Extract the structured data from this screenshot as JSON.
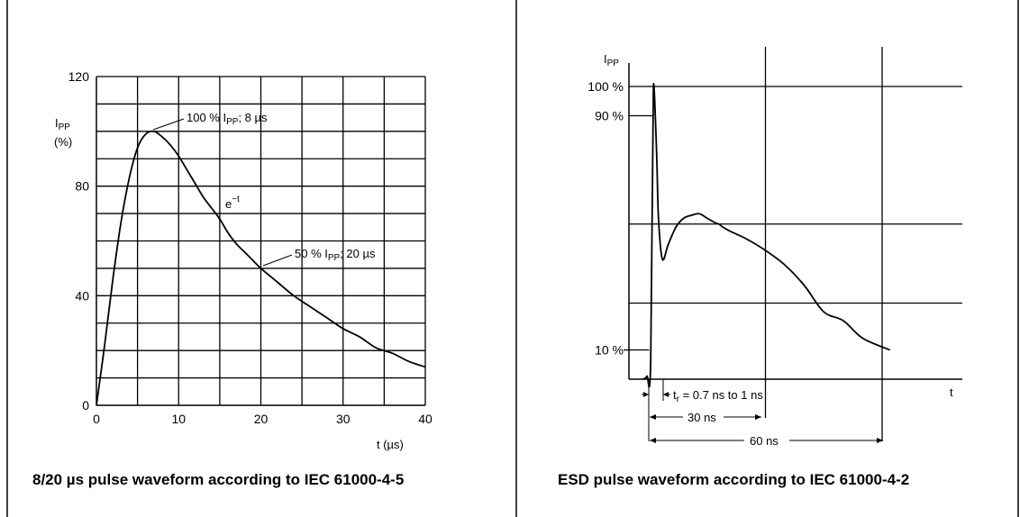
{
  "chart_data": [
    {
      "type": "line",
      "caption": "8/20 µs pulse waveform according to IEC 61000-4-5",
      "ylabel_main": "I",
      "ylabel_sub": "PP",
      "ylabel_unit": "(%)",
      "xlabel": "t (µs)",
      "xlim": [
        0,
        40
      ],
      "ylim": [
        0,
        120
      ],
      "x_ticks": [
        0,
        10,
        20,
        30,
        40
      ],
      "y_ticks": [
        0,
        40,
        80,
        120
      ],
      "grid": true,
      "annotations": [
        {
          "id": "peak",
          "main": "100 % I",
          "sub": "PP",
          "rest": "; 8 µs",
          "x": 7,
          "y": 100
        },
        {
          "id": "half",
          "main": "50 % I",
          "sub": "PP",
          "rest": "; 20 µs",
          "x": 20,
          "y": 50
        },
        {
          "id": "decay",
          "main": "e",
          "sup": "−t",
          "x": 16,
          "y": 70
        }
      ],
      "series": [
        {
          "x": [
            0,
            1,
            2,
            3,
            4,
            5,
            6,
            7,
            8,
            9,
            10,
            11,
            12,
            13,
            14,
            15,
            16,
            17,
            18,
            19,
            20,
            22,
            24,
            26,
            28,
            30,
            32,
            34,
            36,
            38,
            40
          ],
          "y": [
            0,
            22,
            46,
            67,
            83,
            94,
            99,
            100,
            98,
            95,
            91,
            86,
            81,
            76,
            72,
            68,
            63,
            59,
            56,
            53,
            50,
            45,
            40,
            36,
            32,
            28,
            25,
            21,
            19,
            16,
            14
          ]
        }
      ]
    },
    {
      "type": "line",
      "caption": "ESD pulse waveform according to IEC 61000-4-2",
      "ylabel_main": "I",
      "ylabel_sub": "PP",
      "xlabel": "t",
      "xlim": [
        -1.5,
        62
      ],
      "ylim": [
        0,
        100
      ],
      "y_tick_labels": [
        {
          "label": "100 %",
          "y": 100
        },
        {
          "label": "90 %",
          "y": 90
        },
        {
          "label": "10 %",
          "y": 10
        }
      ],
      "gridlines_y": [
        53,
        26
      ],
      "gridlines_x": [
        30,
        60
      ],
      "annotations": [
        {
          "id": "rise",
          "main": "t",
          "sub": "r",
          "rest": " = 0.7 ns to 1 ns"
        },
        {
          "id": "t30",
          "text": "30 ns",
          "from": 0,
          "to": 30
        },
        {
          "id": "t60",
          "text": "60 ns",
          "from": 0,
          "to": 60
        }
      ],
      "series": [
        {
          "x": [
            -1.5,
            -0.5,
            0.5,
            1.2,
            2,
            2.5,
            3.5,
            5,
            7,
            9,
            11,
            13,
            15,
            17,
            18,
            19,
            21,
            25,
            30,
            35,
            40,
            45,
            50,
            55,
            62
          ],
          "y": [
            0,
            1,
            6,
            100,
            78,
            55,
            41,
            46,
            52,
            55,
            56,
            56.5,
            55,
            53.5,
            53,
            52,
            50.5,
            48,
            44,
            39,
            32,
            23,
            20,
            14,
            10
          ]
        }
      ]
    }
  ]
}
